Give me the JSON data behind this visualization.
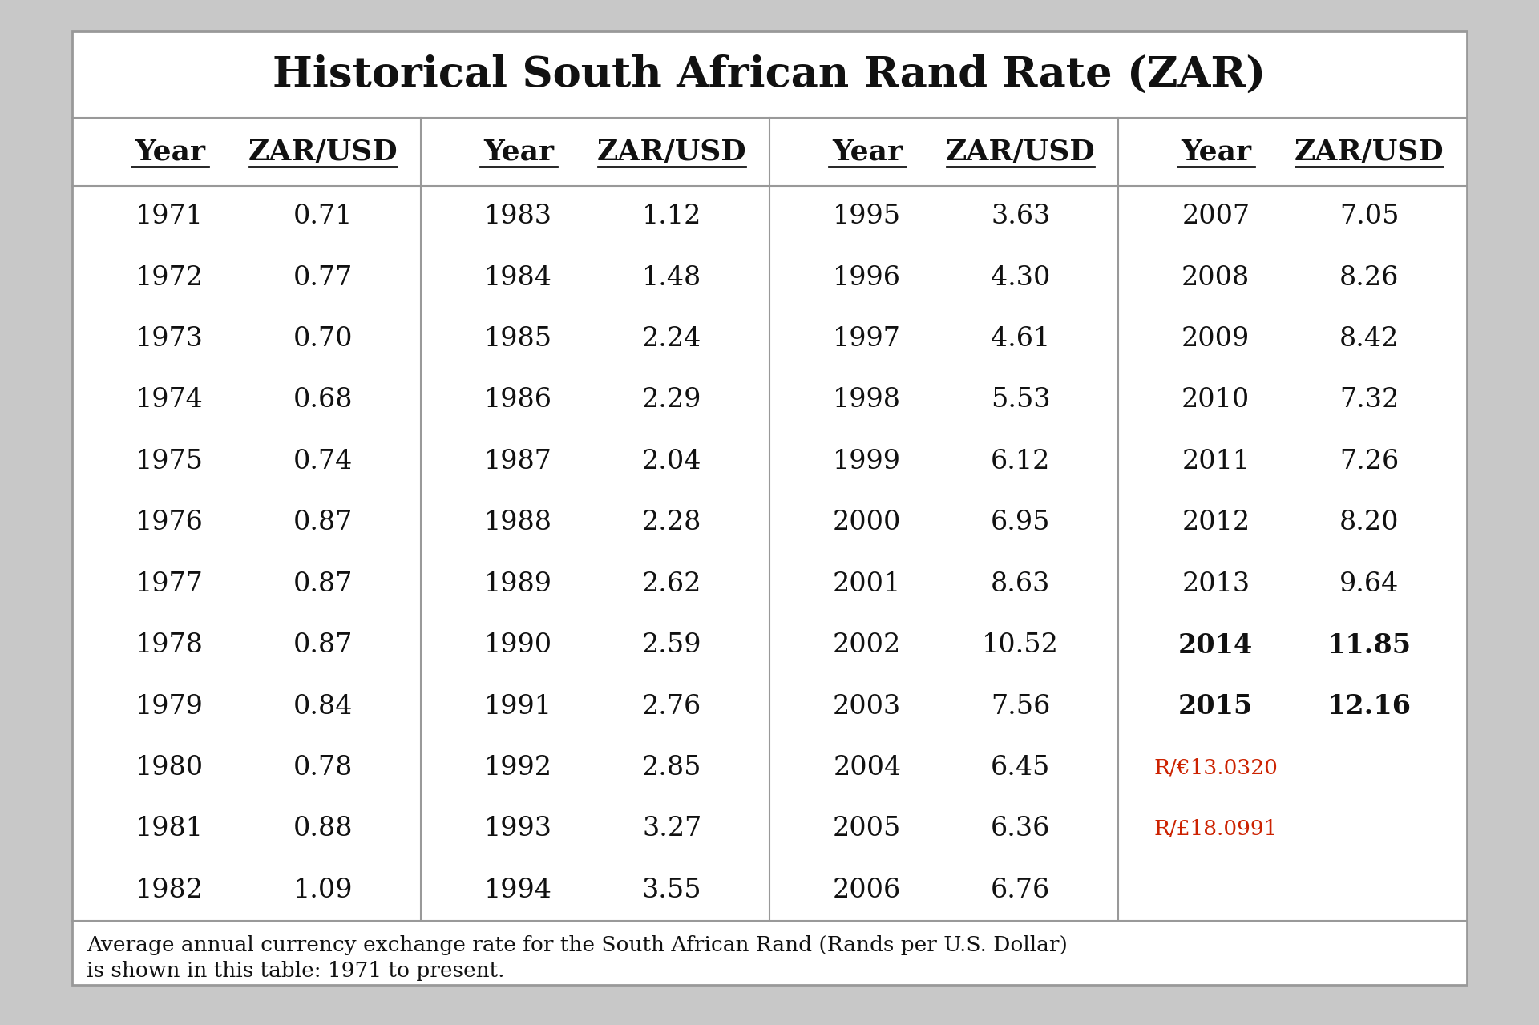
{
  "title": "Historical South African Rand Rate (ZAR)",
  "columns": [
    {
      "years": [
        "1971",
        "1972",
        "1973",
        "1974",
        "1975",
        "1976",
        "1977",
        "1978",
        "1979",
        "1980",
        "1981",
        "1982"
      ],
      "values": [
        "0.71",
        "0.77",
        "0.70",
        "0.68",
        "0.74",
        "0.87",
        "0.87",
        "0.87",
        "0.84",
        "0.78",
        "0.88",
        "1.09"
      ]
    },
    {
      "years": [
        "1983",
        "1984",
        "1985",
        "1986",
        "1987",
        "1988",
        "1989",
        "1990",
        "1991",
        "1992",
        "1993",
        "1994"
      ],
      "values": [
        "1.12",
        "1.48",
        "2.24",
        "2.29",
        "2.04",
        "2.28",
        "2.62",
        "2.59",
        "2.76",
        "2.85",
        "3.27",
        "3.55"
      ]
    },
    {
      "years": [
        "1995",
        "1996",
        "1997",
        "1998",
        "1999",
        "2000",
        "2001",
        "2002",
        "2003",
        "2004",
        "2005",
        "2006"
      ],
      "values": [
        "3.63",
        "4.30",
        "4.61",
        "5.53",
        "6.12",
        "6.95",
        "8.63",
        "10.52",
        "7.56",
        "6.45",
        "6.36",
        "6.76"
      ]
    },
    {
      "years": [
        "2007",
        "2008",
        "2009",
        "2010",
        "2011",
        "2012",
        "2013",
        "2014",
        "2015",
        "R/€13.0320",
        "R/£18.0991",
        ""
      ],
      "values": [
        "7.05",
        "8.26",
        "8.42",
        "7.32",
        "7.26",
        "8.20",
        "9.64",
        "11.85",
        "12.16",
        "",
        "",
        ""
      ]
    }
  ],
  "bold_indices_col3": [
    7,
    8
  ],
  "red_indices_col3": [
    9,
    10
  ],
  "footer_line1": "Average annual currency exchange rate for the South African Rand (Rands per U.S. Dollar)",
  "footer_line2": "is shown in this table: 1971 to present.",
  "outer_bg": "#c8c8c8",
  "table_bg": "white",
  "border_color": "#999999",
  "text_color": "#111111",
  "red_color": "#cc2200"
}
